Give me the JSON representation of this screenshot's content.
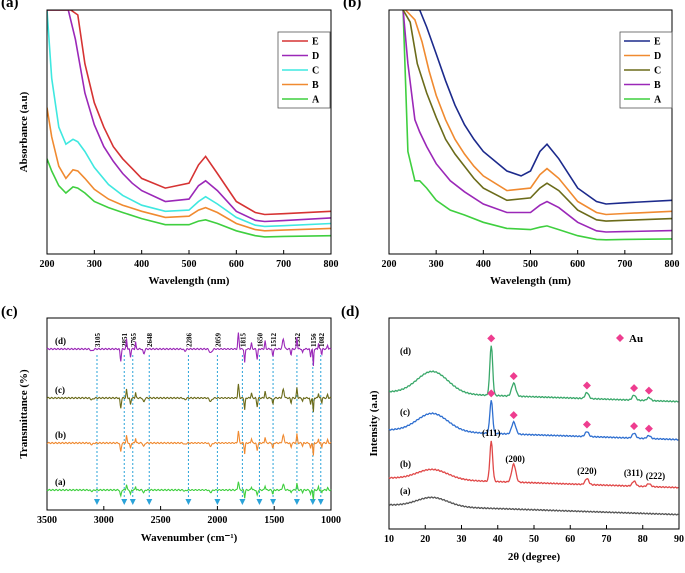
{
  "chart_data": [
    {
      "type": "line",
      "panel_label": "(a)",
      "xlabel": "Wavelength (nm)",
      "ylabel": "Absorbance (a.u)",
      "xlim": [
        200,
        800
      ],
      "xticks": [
        200,
        300,
        400,
        500,
        600,
        700,
        800
      ],
      "ylim": [
        0,
        1
      ],
      "legend": [
        "E",
        "D",
        "C",
        "B",
        "A"
      ],
      "series": [
        {
          "name": "A",
          "color": "#3fcf3f",
          "x": [
            200,
            210,
            225,
            240,
            255,
            265,
            280,
            300,
            330,
            360,
            400,
            450,
            500,
            520,
            535,
            560,
            600,
            640,
            660,
            700,
            800
          ],
          "y": [
            0.39,
            0.34,
            0.28,
            0.25,
            0.275,
            0.27,
            0.25,
            0.215,
            0.19,
            0.17,
            0.145,
            0.12,
            0.12,
            0.135,
            0.14,
            0.125,
            0.095,
            0.075,
            0.07,
            0.072,
            0.075
          ]
        },
        {
          "name": "B",
          "color": "#f08a30",
          "x": [
            200,
            210,
            225,
            240,
            255,
            265,
            280,
            300,
            330,
            360,
            400,
            450,
            500,
            520,
            535,
            560,
            600,
            640,
            660,
            700,
            800
          ],
          "y": [
            0.6,
            0.48,
            0.36,
            0.31,
            0.345,
            0.34,
            0.31,
            0.265,
            0.225,
            0.2,
            0.175,
            0.15,
            0.155,
            0.18,
            0.19,
            0.17,
            0.125,
            0.1,
            0.095,
            0.098,
            0.105
          ]
        },
        {
          "name": "C",
          "color": "#3fe8e0",
          "x": [
            200,
            210,
            225,
            240,
            255,
            265,
            280,
            300,
            330,
            360,
            400,
            450,
            500,
            520,
            535,
            560,
            600,
            640,
            660,
            700,
            800
          ],
          "y": [
            1.0,
            0.72,
            0.52,
            0.45,
            0.47,
            0.46,
            0.42,
            0.355,
            0.285,
            0.24,
            0.2,
            0.175,
            0.18,
            0.215,
            0.235,
            0.205,
            0.15,
            0.118,
            0.113,
            0.116,
            0.125
          ]
        },
        {
          "name": "D",
          "color": "#9b28b8",
          "x": [
            200,
            225,
            245,
            260,
            280,
            300,
            320,
            340,
            360,
            380,
            400,
            450,
            500,
            520,
            535,
            560,
            600,
            640,
            660,
            700,
            800
          ],
          "y": [
            1.0,
            1.0,
            1.0,
            0.88,
            0.66,
            0.53,
            0.44,
            0.38,
            0.33,
            0.29,
            0.26,
            0.215,
            0.225,
            0.28,
            0.3,
            0.26,
            0.175,
            0.138,
            0.133,
            0.137,
            0.148
          ]
        },
        {
          "name": "E",
          "color": "#d63333",
          "x": [
            200,
            230,
            250,
            265,
            280,
            300,
            320,
            340,
            360,
            380,
            400,
            450,
            500,
            520,
            535,
            560,
            600,
            640,
            660,
            700,
            800
          ],
          "y": [
            1.0,
            1.0,
            1.0,
            0.98,
            0.78,
            0.62,
            0.52,
            0.44,
            0.39,
            0.35,
            0.31,
            0.27,
            0.29,
            0.365,
            0.4,
            0.33,
            0.215,
            0.17,
            0.162,
            0.165,
            0.175
          ]
        }
      ]
    },
    {
      "type": "line",
      "panel_label": "(b)",
      "xlabel": "Wavelength (nm)",
      "ylabel": "",
      "xlim": [
        200,
        800
      ],
      "xticks": [
        200,
        300,
        400,
        500,
        600,
        700,
        800
      ],
      "ylim": [
        0,
        1
      ],
      "legend": [
        "E",
        "D",
        "C",
        "B",
        "A"
      ],
      "series": [
        {
          "name": "A",
          "color": "#3fcf3f",
          "x": [
            230,
            240,
            255,
            265,
            280,
            300,
            330,
            360,
            400,
            450,
            500,
            520,
            535,
            560,
            600,
            640,
            660,
            700,
            800
          ],
          "y": [
            1.0,
            0.42,
            0.3,
            0.3,
            0.27,
            0.22,
            0.18,
            0.16,
            0.13,
            0.105,
            0.1,
            0.11,
            0.115,
            0.1,
            0.075,
            0.06,
            0.058,
            0.06,
            0.062
          ]
        },
        {
          "name": "B",
          "color": "#9b28b8",
          "x": [
            230,
            240,
            255,
            265,
            280,
            300,
            330,
            360,
            400,
            450,
            500,
            520,
            535,
            560,
            600,
            640,
            660,
            700,
            800
          ],
          "y": [
            1.0,
            0.78,
            0.55,
            0.5,
            0.44,
            0.37,
            0.3,
            0.255,
            0.205,
            0.17,
            0.17,
            0.2,
            0.215,
            0.19,
            0.13,
            0.095,
            0.09,
            0.092,
            0.096
          ]
        },
        {
          "name": "C",
          "color": "#6b6b1a",
          "x": [
            230,
            245,
            260,
            280,
            300,
            320,
            340,
            360,
            380,
            400,
            450,
            500,
            520,
            535,
            560,
            600,
            640,
            660,
            700,
            800
          ],
          "y": [
            1.0,
            0.95,
            0.78,
            0.66,
            0.56,
            0.47,
            0.41,
            0.36,
            0.31,
            0.27,
            0.22,
            0.23,
            0.27,
            0.29,
            0.26,
            0.18,
            0.14,
            0.135,
            0.138,
            0.145
          ]
        },
        {
          "name": "D",
          "color": "#f08a30",
          "x": [
            235,
            255,
            270,
            285,
            300,
            320,
            340,
            360,
            380,
            400,
            450,
            500,
            520,
            535,
            560,
            600,
            640,
            660,
            700,
            800
          ],
          "y": [
            1.0,
            0.96,
            0.87,
            0.75,
            0.65,
            0.55,
            0.47,
            0.41,
            0.36,
            0.32,
            0.26,
            0.27,
            0.325,
            0.35,
            0.31,
            0.215,
            0.17,
            0.162,
            0.166,
            0.175
          ]
        },
        {
          "name": "E",
          "color": "#1c2a8c",
          "x": [
            245,
            265,
            280,
            300,
            320,
            340,
            360,
            380,
            400,
            450,
            480,
            500,
            520,
            535,
            560,
            600,
            640,
            660,
            700,
            800
          ],
          "y": [
            1.0,
            1.0,
            0.93,
            0.82,
            0.71,
            0.61,
            0.53,
            0.47,
            0.42,
            0.34,
            0.32,
            0.34,
            0.42,
            0.45,
            0.39,
            0.27,
            0.215,
            0.205,
            0.21,
            0.22
          ]
        }
      ]
    },
    {
      "type": "line",
      "panel_label": "(c)",
      "xlabel": "Wavenumber (cm⁻¹)",
      "ylabel": "Transmittance (%)",
      "xlim": [
        3500,
        1000
      ],
      "xticks": [
        3500,
        3000,
        2500,
        2000,
        1500,
        1000
      ],
      "trace_labels": [
        "(d)",
        "(c)",
        "(b)",
        "(a)"
      ],
      "peak_labels": [
        "3105",
        "2851",
        "2765",
        "2648",
        "2286",
        "2059",
        "1815",
        "1650",
        "1512",
        "1352",
        "1156",
        "1082"
      ],
      "peak_positions": [
        3060,
        2820,
        2745,
        2600,
        2255,
        2000,
        1780,
        1630,
        1510,
        1300,
        1160,
        1090
      ]
    },
    {
      "type": "line",
      "panel_label": "(d)",
      "xlabel": "2θ (degree)",
      "ylabel": "Intensity (a.u)",
      "xlim": [
        10,
        90
      ],
      "xticks": [
        10,
        20,
        30,
        40,
        50,
        60,
        70,
        80,
        90
      ],
      "trace_labels": [
        "(d)",
        "(c)",
        "(b)",
        "(a)"
      ],
      "legend_label": "Au",
      "peaks_2theta": [
        38.2,
        44.4,
        64.6,
        77.6,
        81.7
      ],
      "hkl_labels": [
        "(111)",
        "(200)",
        "(220)",
        "(311)",
        "(222)"
      ]
    }
  ]
}
